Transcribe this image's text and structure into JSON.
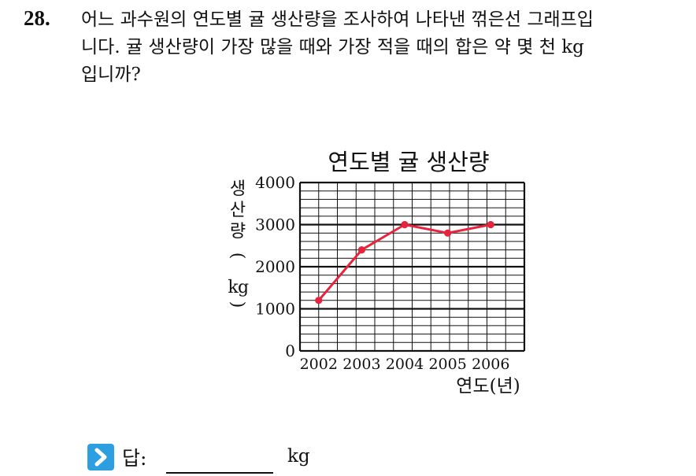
{
  "question": {
    "number": "28.",
    "lines": [
      "어느 과수원의 연도별 귤 생산량을 조사하여 나타낸 꺾은선 그래프입",
      "니다. 귤 생산량이 가장 많을 때와 가장 적을 때의 합은 약 몇 천 kg",
      "입니까?"
    ]
  },
  "chart_data": {
    "type": "line",
    "title": "연도별 귤 생산량",
    "ylabel": "생산량(kg)",
    "xlabel": "연도(년)",
    "categories": [
      "2002",
      "2003",
      "2004",
      "2005",
      "2006"
    ],
    "values": [
      1200,
      2400,
      3000,
      2800,
      3000
    ],
    "ylim": [
      0,
      4000
    ],
    "yticks": [
      0,
      1000,
      2000,
      3000,
      4000
    ],
    "ytick_labels": [
      "0",
      "1000",
      "2000",
      "3000",
      "4000"
    ],
    "minor_step": 200,
    "grid": true,
    "line_color": "#e8243c"
  },
  "answer": {
    "label": "답:",
    "unit": "kg",
    "value": "",
    "icon": "chevron-right-icon",
    "icon_color": "#2d9fe0"
  }
}
